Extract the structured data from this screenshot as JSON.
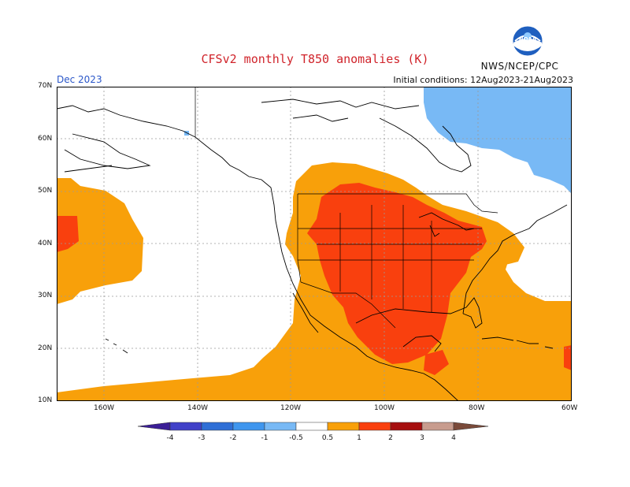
{
  "header": {
    "title": "CFSv2 monthly T850 anomalies (K)",
    "valid_month": "Dec 2023",
    "initial_conditions": "Initial conditions: 12Aug2023-21Aug2023",
    "agency": "NWS/NCEP/CPC",
    "logo_text": "NOAA"
  },
  "axes": {
    "lat_labels": [
      "70N",
      "60N",
      "50N",
      "40N",
      "30N",
      "20N",
      "10N"
    ],
    "lon_labels": [
      "160W",
      "140W",
      "120W",
      "100W",
      "80W",
      "60W"
    ]
  },
  "legend": {
    "labels": [
      "-4",
      "-3",
      "-2",
      "-1",
      "-0.5",
      "0.5",
      "1",
      "2",
      "3",
      "4"
    ],
    "colors": {
      "lt_minus4": "#3b1e96",
      "m4_m3": "#4141c8",
      "m3_m2": "#2f6fd6",
      "m2_m1": "#3f96ee",
      "m1_m05": "#78b9f5",
      "neutral": "#ffffff",
      "p05_p1": "#f8a00a",
      "p1_p2": "#f9400e",
      "p2_p3": "#a60f0f",
      "p3_p4": "#c89c8e",
      "gt_p4": "#7a4a3a"
    }
  },
  "map_colors": {
    "land_line": "#000000",
    "grid": "#9a9a9a"
  }
}
